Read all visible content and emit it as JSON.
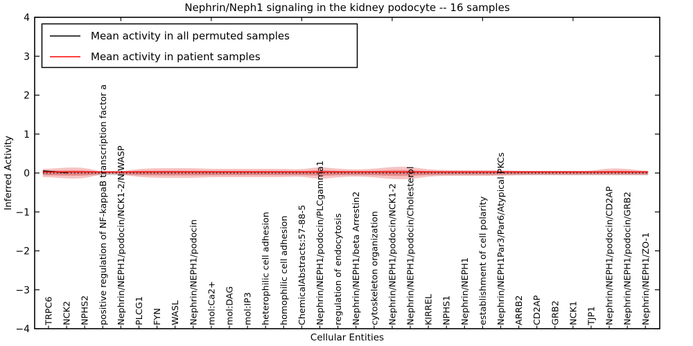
{
  "title": "Nephrin/Neph1 signaling in the kidney podocyte -- 16 samples",
  "legend": {
    "items": [
      {
        "label": "Mean activity in all permuted samples",
        "color": "#000000"
      },
      {
        "label": "Mean activity in patient samples",
        "color": "#ff0000"
      }
    ],
    "position": "upper left"
  },
  "colors": {
    "patient_line": "#ff0000",
    "patient_band": "#e86060",
    "permuted_line": "#000000",
    "permuted_band": "#aaaaaa",
    "frame": "#000000",
    "background": "#ffffff"
  },
  "chart_data": {
    "type": "area",
    "title": "Nephrin/Neph1 signaling in the kidney podocyte -- 16 samples",
    "xlabel": "Cellular Entities",
    "ylabel": "Inferred Activity",
    "ylim": [
      -4,
      4
    ],
    "yticks": [
      4,
      3,
      2,
      1,
      0,
      -1,
      -2,
      -3,
      -4
    ],
    "top_ticks_positions": [
      5,
      10,
      15,
      20,
      25,
      30
    ],
    "grid": false,
    "legend_position": "upper left",
    "categories": [
      "TRPC6",
      "NCK2",
      "NPHS2",
      "positive regulation of NF-kappaB transcription factor a",
      "Nephrin/NEPH1/podocin/NCK1-2/N-WASP",
      "PLCG1",
      "FYN",
      "WASL",
      "Nephrin/NEPH1/podocin",
      "mol:Ca2+",
      "mol:DAG",
      "mol:IP3",
      "heterophilic cell adhesion",
      "homophilic cell adhesion",
      "ChemicalAbstracts:57-88-5",
      "Nephrin/NEPH1/podocin/PLCgamma1",
      "regulation of endocytosis",
      "Nephrin/NEPH1/beta Arrestin2",
      "cytoskeleton organization",
      "Nephrin/NEPH1/podocin/NCK1-2",
      "Nephrin/NEPH1/podocin/Cholesterol",
      "KIRREL",
      "NPHS1",
      "Nephrin/NEPH1",
      "establishment of cell polarity",
      "Nephrin/NEPH1Par3/Par6/Atypical PKCs",
      "ARRB2",
      "CD2AP",
      "GRB2",
      "NCK1",
      "TJP1",
      "Nephrin/NEPH1/podocin/CD2AP",
      "Nephrin/NEPH1/podocin/GRB2",
      "Nephrin/NEPH1/ZO-1"
    ],
    "series": [
      {
        "name": "Mean activity in all permuted samples",
        "color": "#000000",
        "style": "dotted",
        "values": [
          0,
          0,
          0,
          0,
          0,
          0,
          0,
          0,
          0,
          0,
          0,
          0,
          0,
          0,
          0,
          0,
          0,
          0,
          0,
          0,
          0,
          0,
          0,
          0,
          0,
          0,
          0,
          0,
          0,
          0,
          0,
          0,
          0,
          0
        ]
      },
      {
        "name": "Mean activity in patient samples",
        "color": "#ff0000",
        "style": "solid",
        "values": [
          0.028,
          0.028,
          0.028,
          0.028,
          0.028,
          0.028,
          0.028,
          0.028,
          0.028,
          0.028,
          0.028,
          0.028,
          0.028,
          0.028,
          0.028,
          0.028,
          0.028,
          0.028,
          0.028,
          0.028,
          0.028,
          0.028,
          0.028,
          0.028,
          0.028,
          0.028,
          0.028,
          0.028,
          0.028,
          0.028,
          0.028,
          0.028,
          0.028,
          0.028
        ]
      }
    ],
    "patient_band_upper": [
      0.107,
      0.142,
      0.142,
      0.018,
      0.036,
      0.107,
      0.124,
      0.124,
      0.124,
      0.107,
      0.107,
      0.107,
      0.107,
      0.107,
      0.089,
      0.16,
      0.107,
      0.089,
      0.107,
      0.16,
      0.16,
      0.089,
      0.071,
      0.071,
      0.071,
      0.071,
      0.053,
      0.053,
      0.053,
      0.053,
      0.053,
      0.124,
      0.107,
      0.053
    ],
    "patient_band_lower": [
      0.107,
      0.142,
      0.142,
      0.018,
      0.036,
      0.107,
      0.124,
      0.124,
      0.124,
      0.107,
      0.107,
      0.107,
      0.107,
      0.107,
      0.089,
      0.16,
      0.107,
      0.089,
      0.107,
      0.16,
      0.16,
      0.089,
      0.071,
      0.071,
      0.071,
      0.071,
      0.053,
      0.053,
      0.053,
      0.053,
      0.053,
      0.053,
      0.053,
      0.053
    ],
    "permuted_band_halfwidth": 0.057,
    "band_x_range": [
      0.69,
      34.15
    ],
    "permuted_solid_start": {
      "x": [
        0.69,
        1.35,
        2.05
      ],
      "y": [
        0.057,
        0.035,
        0.005
      ]
    }
  }
}
